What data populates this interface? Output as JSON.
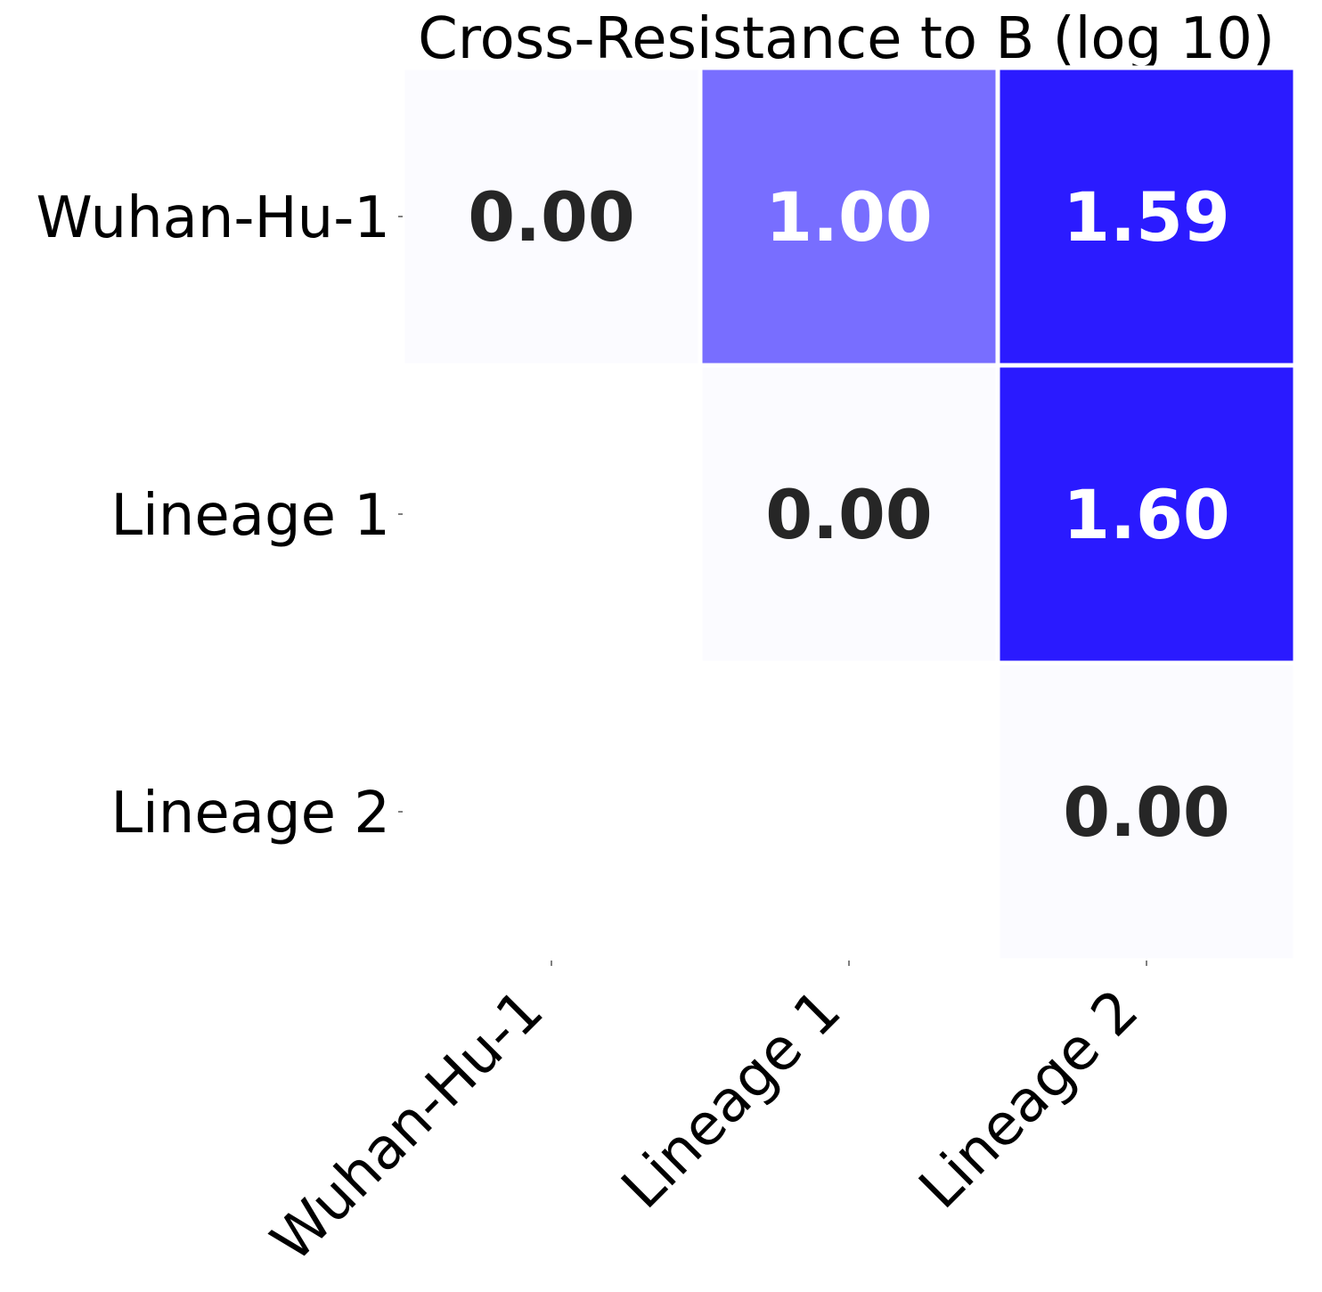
{
  "chart_data": {
    "type": "heatmap",
    "title": "Cross-Resistance to B (log 10)",
    "xlabel": "",
    "ylabel": "",
    "x_categories": [
      "Wuhan-Hu-1",
      "Lineage 1",
      "Lineage 2"
    ],
    "y_categories": [
      "Wuhan-Hu-1",
      "Lineage 1",
      "Lineage 2"
    ],
    "values": [
      [
        0.0,
        1.0,
        1.59
      ],
      [
        null,
        0.0,
        1.6
      ],
      [
        null,
        null,
        0.0
      ]
    ],
    "value_labels": [
      [
        "0.00",
        "1.00",
        "1.59"
      ],
      [
        "",
        "0.00",
        "1.60"
      ],
      [
        "",
        "",
        "0.00"
      ]
    ],
    "color_range": [
      0,
      1.6
    ],
    "colormap": {
      "low": "#fbfbff",
      "high": "#2a1aff"
    },
    "masked": "lower-triangle",
    "grid": false,
    "legend": "none"
  }
}
